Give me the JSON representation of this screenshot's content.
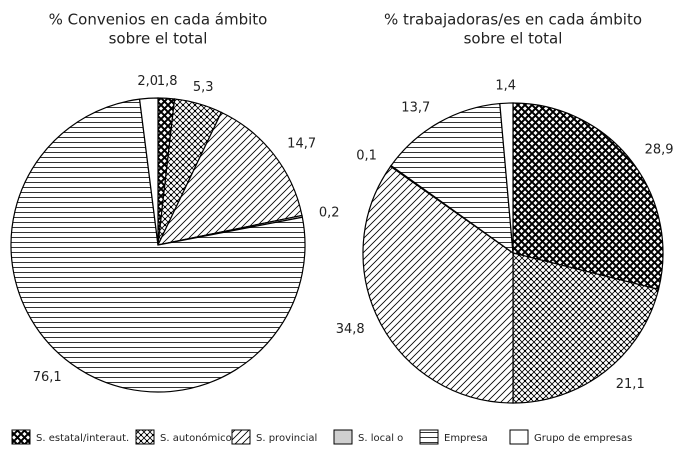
{
  "chart_data": [
    {
      "type": "pie",
      "title": [
        "% Convenios en cada ámbito",
        "sobre el total"
      ],
      "categories": [
        "S. estatal/interaut.",
        "S. autonómico",
        "S. provincial",
        "S. local o",
        "Empresa",
        "Grupo de empresas"
      ],
      "values": [
        1.8,
        5.3,
        14.7,
        0.2,
        76.1,
        2.0
      ],
      "value_labels": [
        "1,8",
        "5,3",
        "14,7",
        "0,2",
        "76,1",
        "2,0"
      ],
      "patterns": [
        "crosshatch",
        "dots",
        "diagonal",
        "gray",
        "horizontal",
        "none"
      ]
    },
    {
      "type": "pie",
      "title": [
        "% trabajadoras/es en cada ámbito",
        "sobre el total"
      ],
      "categories": [
        "S. estatal/interaut.",
        "S. autonómico",
        "S. provincial",
        "S. local o",
        "Empresa",
        "Grupo de empresas"
      ],
      "values": [
        28.9,
        21.1,
        34.8,
        0.1,
        13.7,
        1.4
      ],
      "value_labels": [
        "28,9",
        "21,1",
        "34,8",
        "0,1",
        "13,7",
        "1,4"
      ],
      "patterns": [
        "crosshatch",
        "dots",
        "diagonal",
        "gray",
        "horizontal",
        "none"
      ]
    }
  ]
}
